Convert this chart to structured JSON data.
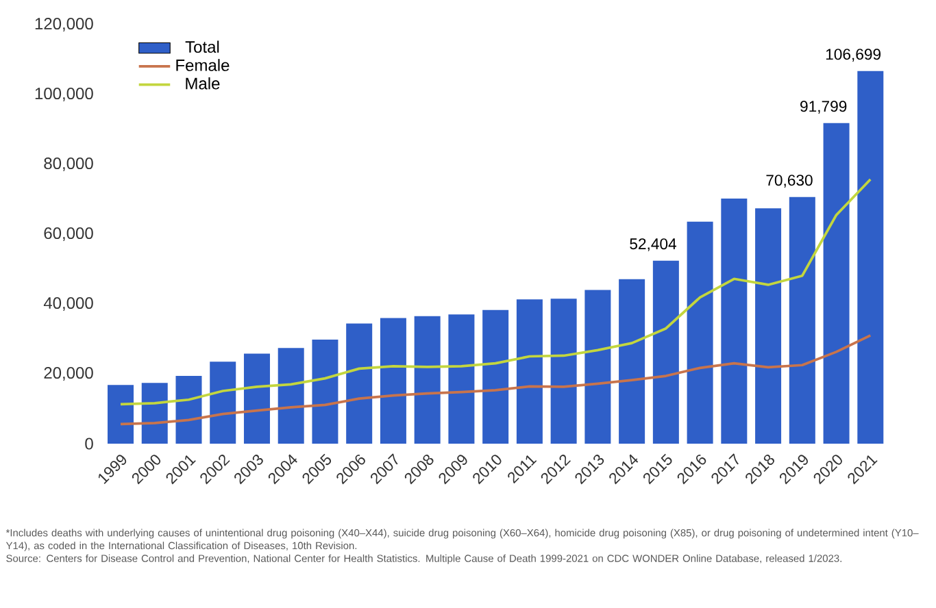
{
  "chart_data": {
    "type": "bar",
    "categories": [
      "1999",
      "2000",
      "2001",
      "2002",
      "2003",
      "2004",
      "2005",
      "2006",
      "2007",
      "2008",
      "2009",
      "2010",
      "2011",
      "2012",
      "2013",
      "2014",
      "2015",
      "2016",
      "2017",
      "2018",
      "2019",
      "2020",
      "2021"
    ],
    "series": [
      {
        "name": "Total",
        "color": "#2f5fc8",
        "values": [
          16800,
          17400,
          19400,
          23500,
          25800,
          27400,
          29800,
          34400,
          36000,
          36500,
          37000,
          38300,
          41300,
          41500,
          44000,
          47100,
          52404,
          63600,
          70200,
          67400,
          70630,
          91799,
          106699
        ],
        "value_labels": [
          null,
          null,
          null,
          null,
          null,
          null,
          null,
          null,
          null,
          null,
          null,
          null,
          null,
          null,
          null,
          null,
          "52,404",
          null,
          null,
          null,
          "70,630",
          "91,799",
          "106,699"
        ]
      },
      {
        "name": "Female",
        "type": "line",
        "color": "#c8744c",
        "values": [
          5600,
          5900,
          6800,
          8500,
          9500,
          10400,
          11100,
          12900,
          13800,
          14400,
          14800,
          15300,
          16400,
          16300,
          17200,
          18200,
          19400,
          21700,
          23000,
          21900,
          22500,
          26300,
          31000
        ]
      },
      {
        "name": "Male",
        "type": "line",
        "color": "#c3d63e",
        "values": [
          11300,
          11600,
          12600,
          15100,
          16300,
          17000,
          18700,
          21500,
          22200,
          22000,
          22200,
          23000,
          25000,
          25200,
          26800,
          28800,
          33000,
          41900,
          47200,
          45500,
          48100,
          65500,
          75700
        ]
      }
    ],
    "ylim": [
      0,
      120000
    ],
    "yticks": [
      {
        "value": 0,
        "label": "0"
      },
      {
        "value": 20000,
        "label": "20,000"
      },
      {
        "value": 40000,
        "label": "40,000"
      },
      {
        "value": 60000,
        "label": "60,000"
      },
      {
        "value": 80000,
        "label": "80,000"
      },
      {
        "value": 100000,
        "label": "100,000"
      },
      {
        "value": 120000,
        "label": "120,000"
      }
    ],
    "legend": "top left",
    "grid": false,
    "line_style": "solid",
    "annotations": [
      "*Includes deaths with underlying causes of unintentional drug poisoning (X40–X44), suicide drug poisoning (X60–X64), homicide drug poisoning (X85), or drug poisoning of undetermined intent (Y10–Y14), as coded in the International Classification of Diseases, 10th Revision.",
      "Source: Centers for Disease Control and Prevention, National Center for Health Statistics. Multiple Cause of Death 1999-2021 on CDC WONDER Online Database, released 1/2023."
    ]
  }
}
